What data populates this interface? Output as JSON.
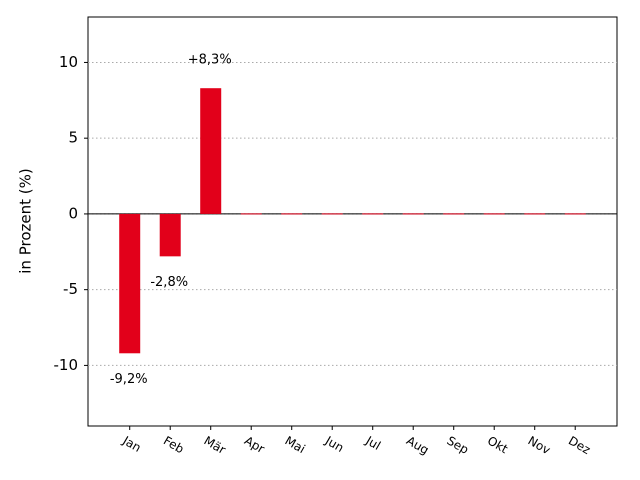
{
  "chart_data": {
    "type": "bar",
    "categories": [
      "Jan",
      "Feb",
      "Mär",
      "Apr",
      "Mai",
      "Jun",
      "Jul",
      "Aug",
      "Sep",
      "Okt",
      "Nov",
      "Dez"
    ],
    "values": [
      -9.2,
      -2.8,
      8.3,
      0,
      0,
      0,
      0,
      0,
      0,
      0,
      0,
      0
    ],
    "value_labels": [
      "-9,2%",
      "-2,8%",
      "+8,3%",
      null,
      null,
      null,
      null,
      null,
      null,
      null,
      null,
      null
    ],
    "color": "#e2001a",
    "y_label": "in Prozent (%)",
    "ylim": [
      -14,
      13
    ],
    "yticks": [
      -10,
      -5,
      0,
      5,
      10
    ],
    "grid": true
  }
}
